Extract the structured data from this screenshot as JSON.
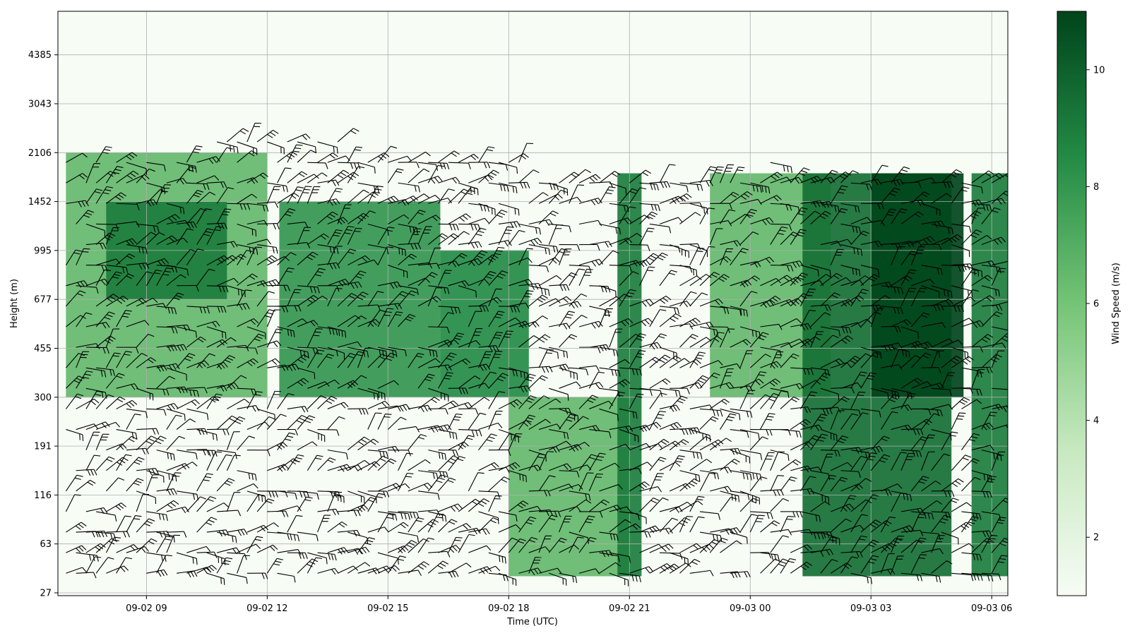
{
  "chart_data": {
    "type": "heatmap",
    "title": "",
    "xlabel": "Time (UTC)",
    "ylabel": "Height (m)",
    "x_unit": "hours since 09-02 00 UTC",
    "x_ticks": [
      {
        "label": "09-02 09",
        "value": 9
      },
      {
        "label": "09-02 12",
        "value": 12
      },
      {
        "label": "09-02 15",
        "value": 15
      },
      {
        "label": "09-02 18",
        "value": 18
      },
      {
        "label": "09-02 21",
        "value": 21
      },
      {
        "label": "09-03 00",
        "value": 24
      },
      {
        "label": "09-03 03",
        "value": 27
      },
      {
        "label": "09-03 06",
        "value": 30
      }
    ],
    "xlim": [
      6.8,
      30.4
    ],
    "y_ticks": [
      27,
      63,
      116,
      191,
      300,
      455,
      677,
      995,
      1452,
      2106,
      3043,
      4385
    ],
    "y_scale": "nonuniform (evenly spaced level index)",
    "grid": true,
    "colorbar": {
      "label": "Wind Speed (m/s)",
      "ticks": [
        2,
        4,
        6,
        8,
        10
      ],
      "range": [
        1,
        11
      ],
      "colormap": "Greens",
      "color_low": "#f7fcf5",
      "color_high": "#00441b"
    },
    "overlay": "wind barbs",
    "wind_speed_profile_hours": [
      6.8,
      9,
      12,
      15,
      18,
      21,
      24,
      27,
      30.4
    ],
    "wind_speed_blocks_ms": [
      {
        "x": [
          7.0,
          12.0
        ],
        "height": [
          300,
          2106
        ],
        "speed": 6.5
      },
      {
        "x": [
          8.0,
          11.0
        ],
        "height": [
          677,
          1452
        ],
        "speed": 9.0
      },
      {
        "x": [
          12.3,
          16.3
        ],
        "height": [
          300,
          1452
        ],
        "speed": 8.0
      },
      {
        "x": [
          16.3,
          18.5
        ],
        "height": [
          300,
          995
        ],
        "speed": 8.5
      },
      {
        "x": [
          18.0,
          21.0
        ],
        "height": [
          36,
          300
        ],
        "speed": 6.5
      },
      {
        "x": [
          20.7,
          21.3
        ],
        "height": [
          36,
          1800
        ],
        "speed": 9.0
      },
      {
        "x": [
          23.0,
          26.0
        ],
        "height": [
          300,
          1800
        ],
        "speed": 6.5
      },
      {
        "x": [
          25.3,
          29.0
        ],
        "height": [
          36,
          1800
        ],
        "speed": 9.5
      },
      {
        "x": [
          27.0,
          29.3
        ],
        "height": [
          300,
          1800
        ],
        "speed": 11.0
      },
      {
        "x": [
          29.5,
          30.4
        ],
        "height": [
          36,
          1800
        ],
        "speed": 9.0
      }
    ]
  }
}
